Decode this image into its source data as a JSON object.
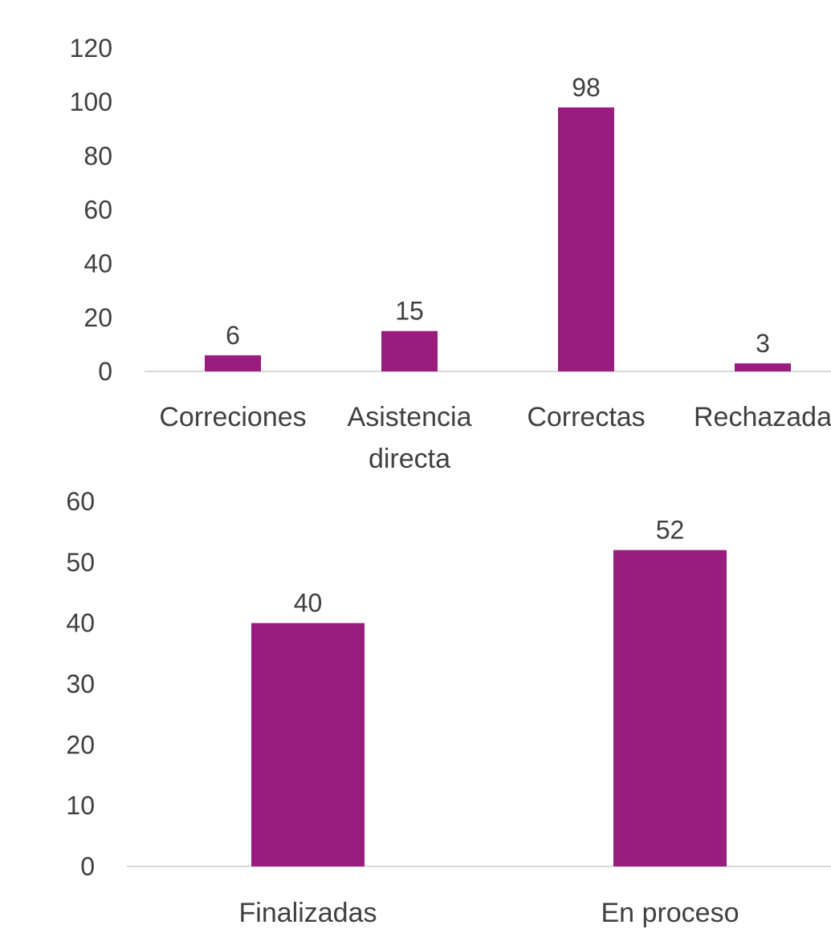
{
  "colors": {
    "bar": "#981d7f",
    "axis": "#d9d9d9",
    "text": "#404040"
  },
  "chart_data": [
    {
      "type": "bar",
      "categories": [
        [
          "Correciones"
        ],
        [
          "Asistencia",
          "directa"
        ],
        [
          "Correctas"
        ],
        [
          "Rechazada"
        ]
      ],
      "values": [
        6,
        15,
        98,
        3
      ],
      "data_labels": [
        "6",
        "15",
        "98",
        "3"
      ],
      "yticks": [
        "0",
        "20",
        "40",
        "60",
        "80",
        "100",
        "120"
      ],
      "ylim": [
        0,
        120
      ],
      "grid": false,
      "legend": "none"
    },
    {
      "type": "bar",
      "categories": [
        [
          "Finalizadas"
        ],
        [
          "En proceso"
        ]
      ],
      "values": [
        40,
        52
      ],
      "data_labels": [
        "40",
        "52"
      ],
      "yticks": [
        "0",
        "10",
        "20",
        "30",
        "40",
        "50",
        "60"
      ],
      "ylim": [
        0,
        60
      ],
      "grid": false,
      "legend": "none"
    }
  ]
}
